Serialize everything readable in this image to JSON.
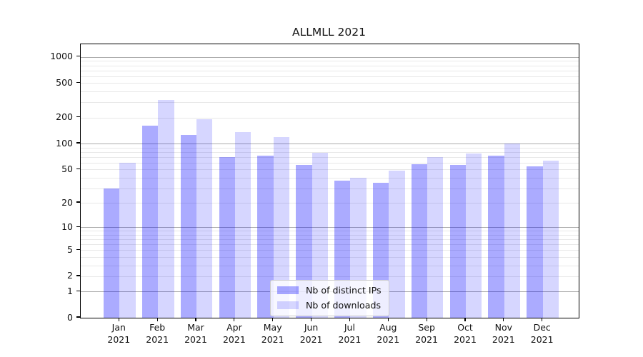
{
  "chart_data": {
    "type": "bar",
    "title": "ALLMLL 2021",
    "year": "2021",
    "categories": [
      "Jan",
      "Feb",
      "Mar",
      "Apr",
      "May",
      "Jun",
      "Jul",
      "Aug",
      "Sep",
      "Oct",
      "Nov",
      "Dec"
    ],
    "series": [
      {
        "name": "Nb of distinct IPs",
        "color": "#0000FF",
        "alpha": 0.33,
        "values": [
          30,
          160,
          127,
          70,
          73,
          56,
          37,
          35,
          57,
          56,
          73,
          54
        ]
      },
      {
        "name": "Nb of downloads",
        "color": "#0000FF",
        "alpha": 0.16,
        "values": [
          60,
          320,
          190,
          135,
          120,
          78,
          40,
          48,
          70,
          76,
          100,
          63
        ]
      }
    ],
    "yscale": "log1p",
    "ylim": [
      0,
      1400
    ],
    "yticks": [
      1000,
      500,
      200,
      100,
      50,
      20,
      10,
      5,
      2,
      1,
      0
    ],
    "major_gridline_values": [
      1,
      10,
      100,
      1000
    ],
    "grid": "on",
    "legend_position": "lower center",
    "colors": {
      "major_grid": "#ABABAB",
      "minor_grid": "#E8E8E8",
      "axis": "#000000",
      "text": "#111111",
      "background": "#FFFFFF",
      "bar_ips_rendered": "#ABABFE",
      "bar_downloads_rendered": "#D8D8FE"
    }
  }
}
